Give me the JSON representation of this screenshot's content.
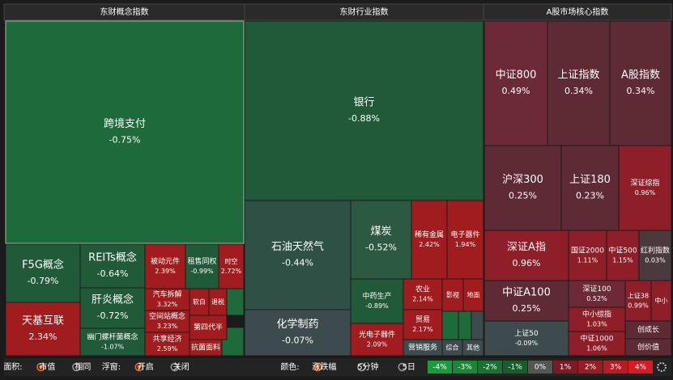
{
  "panels": [
    {
      "title": "东财概念指数",
      "tiles": [
        {
          "name": "跨境支付",
          "change": "-0.75%"
        },
        {
          "name": "F5G概念",
          "change": "-0.79%"
        },
        {
          "name": "天基互联",
          "change": "2.34%"
        },
        {
          "name": "REITs概念",
          "change": "-0.64%"
        },
        {
          "name": "肝炎概念",
          "change": "-0.72%"
        },
        {
          "name": "幽门螺杆菌概念",
          "change": "-1.07%"
        },
        {
          "name": "被动元件",
          "change": "2.39%"
        },
        {
          "name": "租售同权",
          "change": "-0.99%"
        },
        {
          "name": "时空",
          "change": "2.72%"
        },
        {
          "name": "汽车拆解",
          "change": "3.32%"
        },
        {
          "name": "空间站概念",
          "change": "3.23%"
        },
        {
          "name": "共享经济",
          "change": "2.59%"
        },
        {
          "name": "软白"
        },
        {
          "name": "退税"
        },
        {
          "name": "第四代半"
        },
        {
          "name": "抗菌面料"
        }
      ]
    },
    {
      "title": "东财行业指数",
      "tiles": [
        {
          "name": "银行",
          "change": "-0.88%"
        },
        {
          "name": "石油天然气",
          "change": "-0.44%"
        },
        {
          "name": "化学制药",
          "change": "-0.07%"
        },
        {
          "name": "煤炭",
          "change": "-0.52%"
        },
        {
          "name": "中药生产",
          "change": "-0.89%"
        },
        {
          "name": "光电子器件",
          "change": "2.09%"
        },
        {
          "name": "稀有金属",
          "change": "2.42%"
        },
        {
          "name": "电子器件",
          "change": "1.94%"
        },
        {
          "name": "农业",
          "change": "2.14%"
        },
        {
          "name": "贸易",
          "change": "2.17%"
        },
        {
          "name": "营销服务"
        },
        {
          "name": "影视"
        },
        {
          "name": "地面"
        },
        {
          "name": "综合"
        },
        {
          "name": "其他"
        }
      ]
    },
    {
      "title": "A股市场核心指数",
      "tiles": [
        {
          "name": "中证800",
          "change": "0.49%"
        },
        {
          "name": "上证指数",
          "change": "0.34%"
        },
        {
          "name": "A股指数",
          "change": "0.34%"
        },
        {
          "name": "沪深300",
          "change": "0.25%"
        },
        {
          "name": "上证180",
          "change": "0.23%"
        },
        {
          "name": "深证综指",
          "change": "0.96%"
        },
        {
          "name": "深证A指",
          "change": "0.96%"
        },
        {
          "name": "国证2000",
          "change": "1.11%"
        },
        {
          "name": "中证500",
          "change": "1.15%"
        },
        {
          "name": "红利指数",
          "change": "0.03%"
        },
        {
          "name": "中证A100",
          "change": "0.25%"
        },
        {
          "name": "上证50",
          "change": "-0.09%"
        },
        {
          "name": "深证100",
          "change": "0.52%"
        },
        {
          "name": "中小综指",
          "change": "1.03%"
        },
        {
          "name": "中证1000",
          "change": "1.06%"
        },
        {
          "name": "上证38",
          "change": "0.99%"
        },
        {
          "name": "中小"
        },
        {
          "name": "创成长"
        },
        {
          "name": "创价值"
        }
      ]
    }
  ],
  "toolbar": {
    "area_label": "面积:",
    "area_options": [
      "市值",
      "相同"
    ],
    "float_label": "浮窗:",
    "float_options": [
      "开启",
      "关闭"
    ],
    "color_label": "颜色:",
    "color_options": [
      "涨跌幅",
      "5分钟",
      "5日"
    ],
    "legend": [
      "-4%",
      "-3%",
      "-2%",
      "-1%",
      "0%",
      "1%",
      "2%",
      "3%",
      "4%"
    ]
  }
}
